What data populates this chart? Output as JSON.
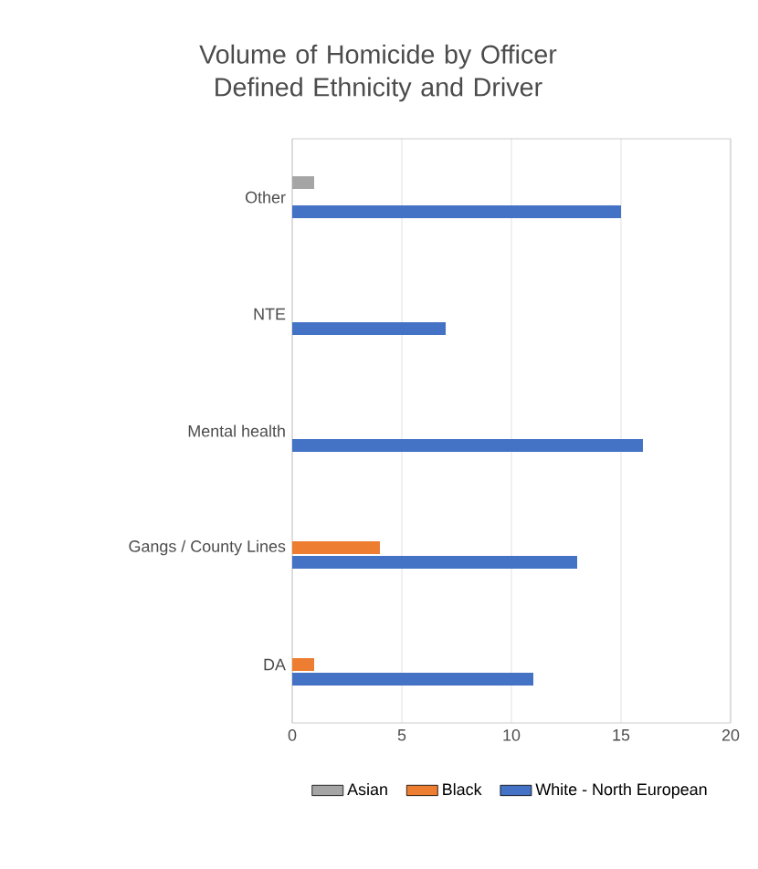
{
  "chart_data": {
    "type": "bar",
    "orientation": "horizontal",
    "title": "Volume of Homicide by Officer Defined Ethnicity and Driver",
    "categories": [
      "Other",
      "NTE",
      "Mental health",
      "Gangs / County Lines",
      "DA"
    ],
    "series": [
      {
        "name": "Asian",
        "color": "#a5a5a5",
        "values": [
          1,
          null,
          null,
          null,
          null
        ]
      },
      {
        "name": "Black",
        "color": "#ed7d31",
        "values": [
          null,
          null,
          null,
          4,
          1
        ]
      },
      {
        "name": "White - North European",
        "color": "#4472c4",
        "values": [
          15,
          7,
          16,
          13,
          11
        ]
      }
    ],
    "xlim": [
      0,
      20
    ],
    "xticks": [
      0,
      5,
      10,
      15,
      20
    ],
    "grid": "x",
    "legend": "bottom"
  }
}
